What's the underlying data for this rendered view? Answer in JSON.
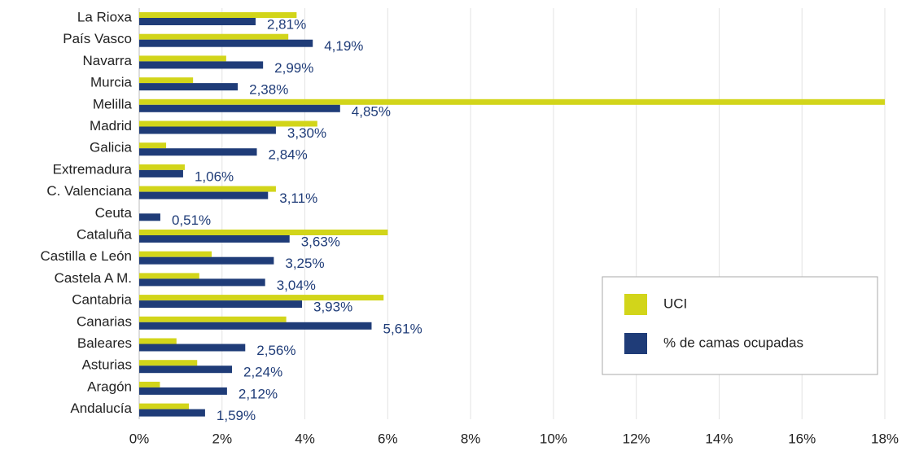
{
  "chart_data": {
    "type": "hbar",
    "categories": [
      "La Rioxa",
      "País Vasco",
      "Navarra",
      "Murcia",
      "Melilla",
      "Madrid",
      "Galicia",
      "Extremadura",
      "C. Valenciana",
      "Ceuta",
      "Cataluña",
      "Castilla e León",
      "Castela A M.",
      "Cantabria",
      "Canarias",
      "Baleares",
      "Asturias",
      "Aragón",
      "Andalucía"
    ],
    "series": [
      {
        "name": "UCI",
        "color": "#d2d51a",
        "values": [
          3.8,
          3.6,
          2.1,
          1.3,
          18,
          4.3,
          0.65,
          1.1,
          3.3,
          0,
          6.0,
          1.75,
          1.45,
          5.9,
          3.55,
          0.9,
          1.4,
          0.5,
          1.2
        ]
      },
      {
        "name": "% de camas ocupadas",
        "color": "#1f3c78",
        "values": [
          2.81,
          4.19,
          2.99,
          2.38,
          4.85,
          3.3,
          2.84,
          1.06,
          3.11,
          0.51,
          3.63,
          3.25,
          3.04,
          3.93,
          5.61,
          2.56,
          2.24,
          2.12,
          1.59
        ],
        "value_labels": [
          "2,81%",
          "4,19%",
          "2,99%",
          "2,38%",
          "4,85%",
          "3,30%",
          "2,84%",
          "1,06%",
          "3,11%",
          "0,51%",
          "3,63%",
          "3,25%",
          "3,04%",
          "3,93%",
          "5,61%",
          "2,56%",
          "2,24%",
          "2,12%",
          "1,59%"
        ]
      }
    ],
    "xlim": [
      0,
      18
    ],
    "xticks": [
      {
        "value": 0,
        "label": "0%"
      },
      {
        "value": 2,
        "label": "2%"
      },
      {
        "value": 4,
        "label": "4%"
      },
      {
        "value": 6,
        "label": "6%"
      },
      {
        "value": 8,
        "label": "8%"
      },
      {
        "value": 10,
        "label": "10%"
      },
      {
        "value": 12,
        "label": "12%"
      },
      {
        "value": 14,
        "label": "14%"
      },
      {
        "value": 16,
        "label": "16%"
      },
      {
        "value": 18,
        "label": "18%"
      }
    ],
    "grid": true,
    "legend": "lower right"
  }
}
